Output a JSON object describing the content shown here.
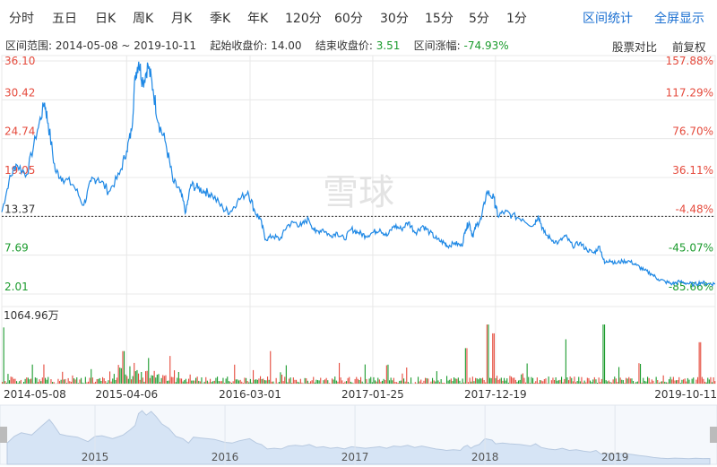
{
  "tabs": [
    "分时",
    "五日",
    "日K",
    "周K",
    "月K",
    "季K",
    "年K",
    "120分",
    "60分",
    "30分",
    "15分",
    "5分",
    "1分"
  ],
  "right_links": [
    "区间统计",
    "全屏显示"
  ],
  "info": {
    "range_label": "区间范围:",
    "range_value": "2014-05-08 ~ 2019-10-11",
    "start_label": "起始收盘价:",
    "start_value": "14.00",
    "end_label": "结束收盘价:",
    "end_value": "3.51",
    "change_label": "区间涨幅:",
    "change_value": "-74.93%"
  },
  "options": [
    "股票对比",
    "前复权"
  ],
  "watermark": "雪球",
  "colors": {
    "line": "#1e88e5",
    "up": "#e54a3c",
    "down": "#1b9b2d",
    "grid": "#e8e8e8",
    "nav_fill": "#d6e4f5",
    "link": "#1a6fd1"
  },
  "chart_data": {
    "type": "line",
    "title": "",
    "y_ticks_price": [
      "36.10",
      "30.42",
      "24.74",
      "19.05",
      "13.37",
      "7.69",
      "2.01"
    ],
    "y_ticks_pct": [
      "157.88%",
      "117.29%",
      "76.70%",
      "36.11%",
      "-4.48%",
      "-45.07%",
      "-85.66%"
    ],
    "y_range": [
      2.01,
      36.1
    ],
    "reference_price": 13.37,
    "volume_max_label": "1064.96万",
    "volume_max": 1064.96,
    "x_ticks": [
      "2014-05-08",
      "2015-04-06",
      "2016-03-01",
      "2017-01-25",
      "2017-12-19",
      "2019-10-11"
    ],
    "x_tick_fractions": [
      0.0,
      0.175,
      0.348,
      0.52,
      0.692,
      1.0
    ],
    "nav_years": [
      "2015",
      "2016",
      "2017",
      "2018",
      "2019"
    ],
    "nav_year_fractions": [
      0.125,
      0.31,
      0.495,
      0.68,
      0.865
    ],
    "series": [
      {
        "values": [
          [
            0.0,
            14.0
          ],
          [
            0.01,
            18.5
          ],
          [
            0.02,
            21.0
          ],
          [
            0.035,
            19.5
          ],
          [
            0.05,
            26.0
          ],
          [
            0.06,
            30.0
          ],
          [
            0.065,
            27.0
          ],
          [
            0.075,
            20.0
          ],
          [
            0.085,
            19.0
          ],
          [
            0.1,
            18.0
          ],
          [
            0.115,
            15.0
          ],
          [
            0.125,
            18.5
          ],
          [
            0.135,
            19.0
          ],
          [
            0.15,
            17.0
          ],
          [
            0.165,
            19.5
          ],
          [
            0.175,
            23.0
          ],
          [
            0.182,
            26.0
          ],
          [
            0.187,
            34.0
          ],
          [
            0.192,
            36.0
          ],
          [
            0.198,
            33.0
          ],
          [
            0.205,
            35.5
          ],
          [
            0.212,
            32.0
          ],
          [
            0.22,
            27.0
          ],
          [
            0.23,
            24.0
          ],
          [
            0.24,
            18.5
          ],
          [
            0.25,
            17.0
          ],
          [
            0.258,
            14.0
          ],
          [
            0.265,
            18.0
          ],
          [
            0.275,
            17.5
          ],
          [
            0.285,
            17.0
          ],
          [
            0.295,
            16.5
          ],
          [
            0.31,
            14.5
          ],
          [
            0.32,
            14.0
          ],
          [
            0.33,
            15.5
          ],
          [
            0.345,
            17.0
          ],
          [
            0.355,
            14.0
          ],
          [
            0.362,
            13.0
          ],
          [
            0.37,
            10.0
          ],
          [
            0.38,
            10.5
          ],
          [
            0.39,
            10.0
          ],
          [
            0.4,
            12.0
          ],
          [
            0.41,
            12.5
          ],
          [
            0.42,
            12.0
          ],
          [
            0.43,
            13.0
          ],
          [
            0.44,
            11.0
          ],
          [
            0.45,
            11.5
          ],
          [
            0.46,
            10.5
          ],
          [
            0.47,
            11.0
          ],
          [
            0.48,
            10.0
          ],
          [
            0.49,
            11.5
          ],
          [
            0.5,
            11.0
          ],
          [
            0.51,
            10.5
          ],
          [
            0.52,
            11.0
          ],
          [
            0.53,
            11.5
          ],
          [
            0.54,
            10.5
          ],
          [
            0.55,
            12.0
          ],
          [
            0.56,
            11.5
          ],
          [
            0.57,
            12.5
          ],
          [
            0.58,
            11.0
          ],
          [
            0.59,
            12.0
          ],
          [
            0.6,
            11.0
          ],
          [
            0.61,
            10.0
          ],
          [
            0.62,
            9.5
          ],
          [
            0.625,
            9.0
          ],
          [
            0.635,
            9.5
          ],
          [
            0.645,
            9.0
          ],
          [
            0.65,
            11.5
          ],
          [
            0.655,
            12.5
          ],
          [
            0.66,
            10.5
          ],
          [
            0.665,
            12.0
          ],
          [
            0.672,
            13.0
          ],
          [
            0.68,
            17.0
          ],
          [
            0.69,
            16.0
          ],
          [
            0.695,
            13.5
          ],
          [
            0.705,
            14.0
          ],
          [
            0.715,
            13.5
          ],
          [
            0.73,
            13.0
          ],
          [
            0.745,
            12.0
          ],
          [
            0.752,
            13.5
          ],
          [
            0.76,
            11.0
          ],
          [
            0.77,
            10.0
          ],
          [
            0.78,
            9.5
          ],
          [
            0.79,
            10.5
          ],
          [
            0.8,
            9.0
          ],
          [
            0.81,
            9.5
          ],
          [
            0.82,
            8.5
          ],
          [
            0.83,
            8.0
          ],
          [
            0.838,
            9.0
          ],
          [
            0.845,
            6.5
          ],
          [
            0.852,
            7.0
          ],
          [
            0.86,
            6.5
          ],
          [
            0.87,
            6.8
          ],
          [
            0.88,
            6.8
          ],
          [
            0.89,
            6.2
          ],
          [
            0.9,
            5.5
          ],
          [
            0.91,
            5.0
          ],
          [
            0.92,
            4.2
          ],
          [
            0.93,
            3.8
          ],
          [
            0.94,
            3.5
          ],
          [
            0.95,
            3.8
          ],
          [
            0.96,
            3.6
          ],
          [
            0.97,
            3.4
          ],
          [
            0.98,
            3.7
          ],
          [
            0.99,
            3.5
          ],
          [
            1.0,
            3.51
          ]
        ]
      }
    ]
  }
}
